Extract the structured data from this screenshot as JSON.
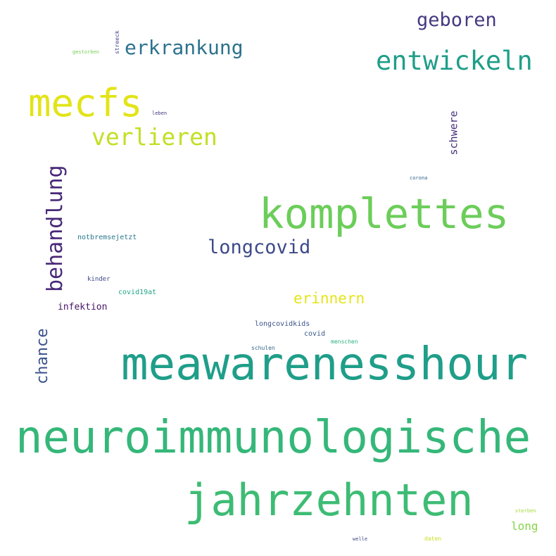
{
  "words": [
    {
      "key": "neuroimmunologische",
      "text": "neuroimmunologische",
      "color": "#35b779"
    },
    {
      "key": "meawarenesshour",
      "text": "meawarenesshour",
      "color": "#1f9e89"
    },
    {
      "key": "jahrzehnten",
      "text": "jahrzehnten",
      "color": "#3dbc74"
    },
    {
      "key": "komplettes",
      "text": "komplettes",
      "color": "#6ccd5a"
    },
    {
      "key": "mecfs",
      "text": "mecfs",
      "color": "#e2e418"
    },
    {
      "key": "behandlung",
      "text": "behandlung",
      "color": "#482878"
    },
    {
      "key": "entwickeln",
      "text": "entwickeln",
      "color": "#1f9e89"
    },
    {
      "key": "verlieren",
      "text": "verlieren",
      "color": "#c2df23"
    },
    {
      "key": "erkrankung",
      "text": "erkrankung",
      "color": "#2c728e"
    },
    {
      "key": "geboren",
      "text": "geboren",
      "color": "#443983"
    },
    {
      "key": "longcovid",
      "text": "longcovid",
      "color": "#3e4a89"
    },
    {
      "key": "erinnern",
      "text": "erinnern",
      "color": "#e5e419"
    },
    {
      "key": "chance",
      "text": "chance",
      "color": "#3b528b"
    },
    {
      "key": "schwere",
      "text": "schwere",
      "color": "#472f7d"
    },
    {
      "key": "long",
      "text": "long",
      "color": "#86d549"
    },
    {
      "key": "infektion",
      "text": "infektion",
      "color": "#481467"
    },
    {
      "key": "covid19at",
      "text": "covid19at",
      "color": "#22a785"
    },
    {
      "key": "notbremsejetzt",
      "text": "notbremsejetzt",
      "color": "#2a788e"
    },
    {
      "key": "kinder",
      "text": "kinder",
      "color": "#3e4989"
    },
    {
      "key": "longcovidkids",
      "text": "longcovidkids",
      "color": "#3b528b"
    },
    {
      "key": "covid",
      "text": "covid",
      "color": "#38588c"
    },
    {
      "key": "menschen",
      "text": "menschen",
      "color": "#2db27d"
    },
    {
      "key": "schulen",
      "text": "schulen",
      "color": "#31688e"
    },
    {
      "key": "streeck",
      "text": "streeck",
      "color": "#414487"
    },
    {
      "key": "gestorben",
      "text": "gestorben",
      "color": "#73d056"
    },
    {
      "key": "leben",
      "text": "leben",
      "color": "#46327e"
    },
    {
      "key": "corona",
      "text": "corona",
      "color": "#33638d"
    },
    {
      "key": "sterben",
      "text": "sterben",
      "color": "#a2da37"
    },
    {
      "key": "daten",
      "text": "daten",
      "color": "#cae11f"
    },
    {
      "key": "welle",
      "text": "welle",
      "color": "#3f4788"
    }
  ]
}
